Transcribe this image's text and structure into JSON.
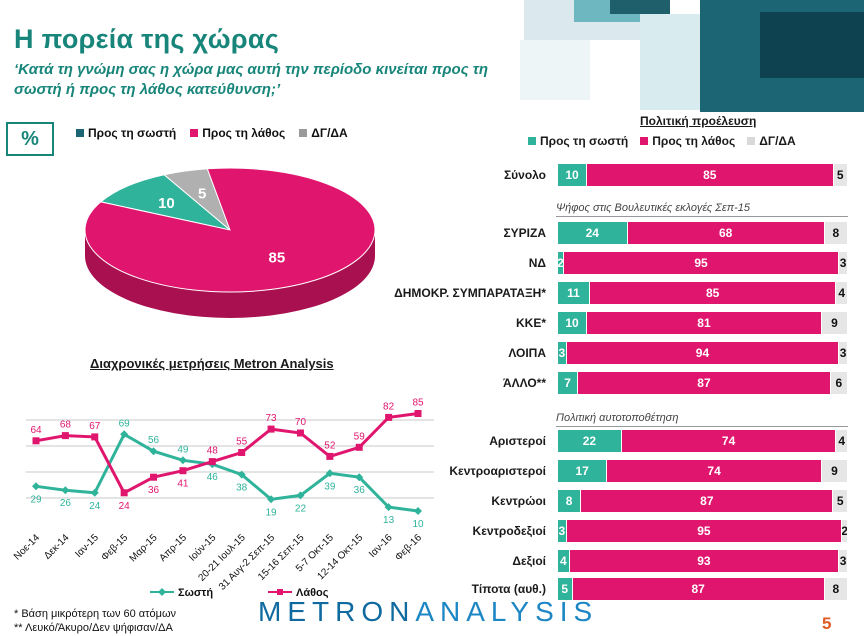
{
  "header": {
    "title": "Η πορεία της χώρας",
    "subtitle": "‘Κατά τη γνώμη σας η χώρα μας αυτή την περίοδο κινείται προς τη σωστή ή προς τη λάθος κατεύθυνση;’"
  },
  "pie_section": {
    "unit_label": "%",
    "legend": [
      "Προς τη σωστή",
      "Προς τη λάθος",
      "ΔΓ/ΔΑ"
    ]
  },
  "trend_section": {
    "title": "Διαχρονικές μετρήσεις Metron Analysis",
    "legend": [
      "Σωστή",
      "Λάθος"
    ]
  },
  "right_panel": {
    "title": "Πολιτική προέλευση",
    "legend": [
      "Προς τη σωστή",
      "Προς τη λάθος",
      "ΔΓ/ΔΑ"
    ],
    "section1_label": "Ψήφος στις Βουλευτικές εκλογές Σεπ-15",
    "section2_label": "Πολιτική αυτοτοποθέτηση"
  },
  "footer": {
    "note1": "*  Βάση μικρότερη των 60 ατόμων",
    "note2": "** Λευκό/Άκυρο/Δεν ψήφισαν/ΔΑ",
    "logo_a": "METRON",
    "logo_b": "ANALYSIS",
    "page": "5"
  },
  "colors": {
    "correct": "#2fb39b",
    "wrong": "#e0156e",
    "dk": "#d9d9d9",
    "brand": "#17857a"
  },
  "chart_data": [
    {
      "type": "pie",
      "categories": [
        "Προς τη σωστή",
        "Προς τη λάθος",
        "ΔΓ/ΔΑ"
      ],
      "values": [
        10,
        85,
        5
      ]
    },
    {
      "type": "line",
      "title": "Διαχρονικές μετρήσεις Metron Analysis",
      "x": [
        "Νοε-14",
        "Δεκ-14",
        "Ιαν-15",
        "Φεβ-15",
        "Μαρ-15",
        "Απρ-15",
        "Ιούν-15",
        "20-21 Ιουλ-15",
        "31 Αυγ-2 Σεπ-15",
        "15-16 Σεπ-15",
        "5-7 Οκτ-15",
        "12-14 Οκτ-15",
        "Ιαν-16",
        "Φεβ-16"
      ],
      "series": [
        {
          "name": "Σωστή",
          "values": [
            29,
            26,
            24,
            69,
            56,
            49,
            46,
            38,
            19,
            22,
            39,
            36,
            13,
            10
          ]
        },
        {
          "name": "Λάθος",
          "values": [
            64,
            68,
            67,
            24,
            36,
            41,
            48,
            55,
            73,
            70,
            52,
            59,
            82,
            85
          ]
        }
      ],
      "ylim": [
        0,
        100
      ],
      "grid": true,
      "legend": "bottom"
    },
    {
      "type": "bar",
      "stacked": true,
      "orientation": "horizontal",
      "categories": [
        "Σύνολο",
        "ΣΥΡΙΖΑ",
        "ΝΔ",
        "ΔΗΜΟΚΡ. ΣΥΜΠΑΡΑΤΑΞΗ*",
        "ΚΚΕ*",
        "ΛΟΙΠΑ",
        "ΆΛΛΟ**",
        "Αριστεροί",
        "Κεντροαριστεροί",
        "Κεντρώοι",
        "Κεντροδεξιοί",
        "Δεξιοί",
        "Τίποτα (αυθ.)"
      ],
      "series": [
        {
          "name": "Προς τη σωστή",
          "values": [
            10,
            24,
            2,
            11,
            10,
            3,
            7,
            22,
            17,
            8,
            3,
            4,
            5
          ]
        },
        {
          "name": "Προς τη λάθος",
          "values": [
            85,
            68,
            95,
            85,
            81,
            94,
            87,
            74,
            74,
            87,
            95,
            93,
            87
          ]
        },
        {
          "name": "ΔΓ/ΔΑ",
          "values": [
            5,
            8,
            3,
            4,
            9,
            3,
            6,
            4,
            9,
            5,
            2,
            3,
            8
          ]
        }
      ],
      "legend": "top"
    }
  ]
}
